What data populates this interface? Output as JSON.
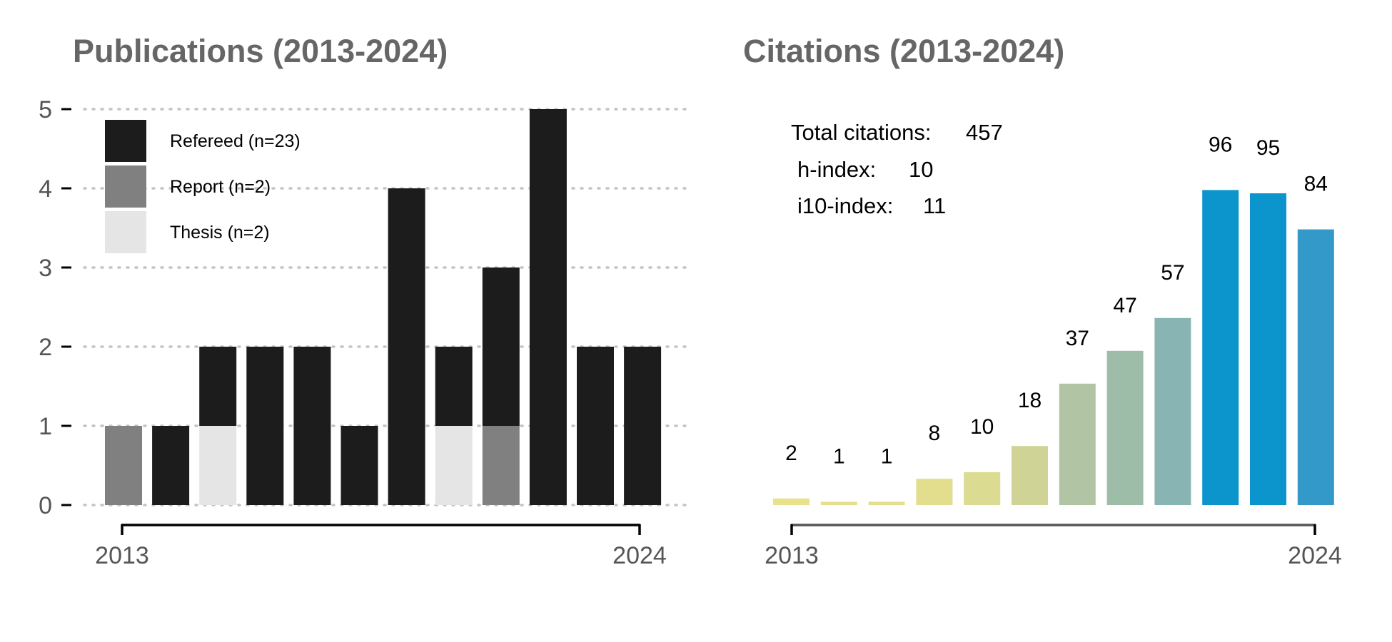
{
  "chart_data": [
    {
      "type": "bar",
      "stacked": true,
      "title": "Publications (2013-2024)",
      "xlabel": "",
      "ylabel": "",
      "categories": [
        "2013",
        "2014",
        "2015",
        "2016",
        "2017",
        "2018",
        "2019",
        "2020",
        "2021",
        "2022",
        "2023",
        "2024"
      ],
      "x_tick_labels": [
        "2013",
        "2024"
      ],
      "y_ticks": [
        "0",
        "1",
        "2",
        "3",
        "4",
        "5"
      ],
      "ylim": [
        0,
        5
      ],
      "grid": "horizontal dotted",
      "legend_position": "top-left",
      "series": [
        {
          "name": "Report (n=2)",
          "color": "#808080",
          "values": [
            1,
            0,
            0,
            0,
            0,
            0,
            0,
            0,
            1,
            0,
            0,
            0
          ]
        },
        {
          "name": "Thesis (n=2)",
          "color": "#e5e5e5",
          "values": [
            0,
            0,
            1,
            0,
            0,
            0,
            0,
            1,
            0,
            0,
            0,
            0
          ]
        },
        {
          "name": "Refereed (n=23)",
          "color": "#1c1c1c",
          "values": [
            0,
            1,
            1,
            2,
            2,
            1,
            4,
            1,
            2,
            5,
            2,
            2
          ]
        }
      ],
      "legend_order": [
        "Refereed (n=23)",
        "Report (n=2)",
        "Thesis (n=2)"
      ]
    },
    {
      "type": "bar",
      "title": "Citations (2013-2024)",
      "xlabel": "",
      "ylabel": "",
      "categories": [
        "2013",
        "2014",
        "2015",
        "2016",
        "2017",
        "2018",
        "2019",
        "2020",
        "2021",
        "2022",
        "2023",
        "2024"
      ],
      "x_tick_labels": [
        "2013",
        "2024"
      ],
      "values": [
        2,
        1,
        1,
        8,
        10,
        18,
        37,
        47,
        57,
        96,
        95,
        84
      ],
      "data_labels": [
        "2",
        "1",
        "1",
        "8",
        "10",
        "18",
        "37",
        "47",
        "57",
        "96",
        "95",
        "84"
      ],
      "colors": [
        "#e8e28c",
        "#e6e08c",
        "#e4df8d",
        "#e2de8e",
        "#dbdb91",
        "#cfd496",
        "#b1c5a4",
        "#9ebda9",
        "#88b5b4",
        "#0b95cc",
        "#0b95cc",
        "#3299c9"
      ],
      "ylim": [
        0,
        100
      ],
      "grid": "none",
      "stats": [
        {
          "label": "Total citations:",
          "value": "457"
        },
        {
          "label": "h-index:",
          "value": "10"
        },
        {
          "label": "i10-index:",
          "value": "11"
        }
      ]
    }
  ]
}
